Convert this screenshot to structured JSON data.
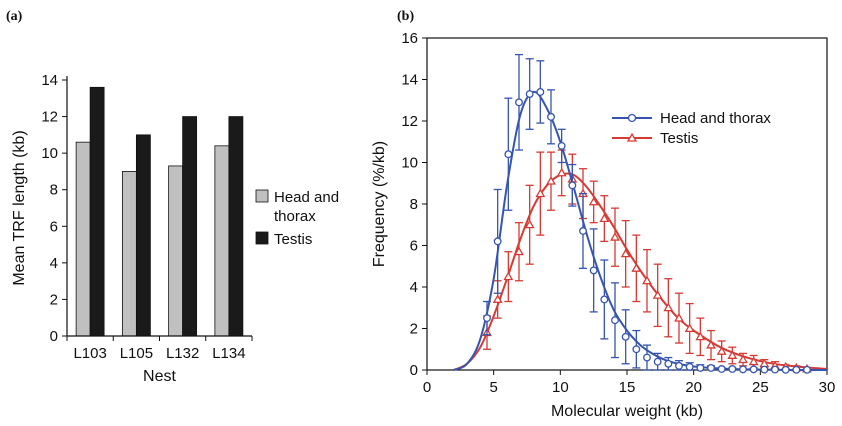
{
  "panel_labels": {
    "a": "(a)",
    "b": "(b)"
  },
  "colors": {
    "bar_head": "#c0c0c0",
    "bar_testis": "#1a1a1a",
    "head_line": "#3555b0",
    "testis_line": "#d63a34",
    "axis": "#111111"
  },
  "chart_data": [
    {
      "type": "bar",
      "panel": "(a)",
      "categories": [
        "L103",
        "L105",
        "L132",
        "L134"
      ],
      "series": [
        {
          "name": "Head and thorax",
          "values": [
            10.6,
            9.0,
            9.3,
            10.4
          ]
        },
        {
          "name": "Testis",
          "values": [
            13.6,
            11.0,
            12.0,
            12.0
          ]
        }
      ],
      "legend_labels": [
        "Head and",
        "thorax",
        "Testis"
      ],
      "xlabel": "Nest",
      "ylabel": "Mean TRF length (kb)",
      "ylim": [
        0,
        14
      ],
      "yticks": [
        "0",
        "2",
        "4",
        "6",
        "8",
        "10",
        "12",
        "14"
      ],
      "grid": false,
      "legend_position": "right"
    },
    {
      "type": "line",
      "panel": "(b)",
      "xlabel": "Molecular weight (kb)",
      "ylabel": "Frequency (%/kb)",
      "xlim": [
        0,
        30
      ],
      "ylim": [
        0,
        16
      ],
      "xticks": [
        "0",
        "5",
        "10",
        "15",
        "20",
        "25",
        "30"
      ],
      "yticks": [
        "0",
        "2",
        "4",
        "6",
        "8",
        "10",
        "12",
        "14",
        "16"
      ],
      "grid": false,
      "legend_position": "top-right",
      "series": [
        {
          "name": "Head and thorax",
          "marker": "circle",
          "x": [
            4.5,
            5.3,
            6.1,
            6.9,
            7.7,
            8.5,
            9.3,
            10.1,
            10.9,
            11.7,
            12.5,
            13.3,
            14.1,
            14.9,
            15.7,
            16.5,
            17.3,
            18.1,
            18.9,
            19.7,
            20.5,
            21.3,
            22.1,
            22.9,
            23.7,
            24.5,
            25.3,
            26.1,
            26.9,
            27.7,
            28.5
          ],
          "y": [
            2.5,
            6.2,
            10.4,
            12.9,
            13.3,
            13.4,
            12.2,
            10.8,
            8.9,
            6.7,
            4.8,
            3.4,
            2.4,
            1.6,
            1.0,
            0.6,
            0.4,
            0.3,
            0.2,
            0.15,
            0.1,
            0.1,
            0.05,
            0.05,
            0.03,
            0.03,
            0.02,
            0.02,
            0.01,
            0.01,
            0.01
          ],
          "err": [
            0.8,
            2.5,
            2.7,
            2.3,
            1.7,
            1.5,
            1.3,
            0.8,
            1.0,
            1.8,
            2.0,
            1.9,
            1.8,
            1.3,
            0.9,
            0.6,
            0.4,
            0.3,
            0.25,
            0.2,
            0.15,
            0.1,
            0.05,
            0.05,
            0,
            0,
            0,
            0,
            0,
            0,
            0
          ],
          "fit_x": [
            2,
            3,
            4,
            5,
            6,
            7,
            8,
            9,
            10,
            11,
            12,
            13,
            14,
            15,
            16,
            17,
            18,
            19,
            20,
            22,
            24,
            26,
            28,
            30
          ],
          "fit_y": [
            0,
            0.3,
            1.5,
            4.4,
            8.9,
            12.3,
            13.4,
            12.6,
            11.0,
            8.8,
            6.5,
            4.5,
            2.9,
            1.9,
            1.2,
            0.75,
            0.45,
            0.28,
            0.17,
            0.07,
            0.03,
            0.01,
            0,
            0
          ]
        },
        {
          "name": "Testis",
          "marker": "triangle",
          "x": [
            4.5,
            5.3,
            6.1,
            6.9,
            7.7,
            8.5,
            9.3,
            10.1,
            10.9,
            11.7,
            12.5,
            13.3,
            14.1,
            14.9,
            15.7,
            16.5,
            17.3,
            18.1,
            18.9,
            19.7,
            20.5,
            21.3,
            22.1,
            22.9,
            23.7,
            24.5,
            25.3,
            26.1,
            26.9,
            27.7,
            28.5
          ],
          "y": [
            1.8,
            3.4,
            4.5,
            5.7,
            7.0,
            8.5,
            9.1,
            9.5,
            9.2,
            8.5,
            8.1,
            7.3,
            6.4,
            5.6,
            4.9,
            4.3,
            3.6,
            3.0,
            2.5,
            2.0,
            1.6,
            1.2,
            0.9,
            0.7,
            0.5,
            0.4,
            0.3,
            0.2,
            0.15,
            0.1,
            0.05
          ],
          "err": [
            0.8,
            0.9,
            1.2,
            1.4,
            1.9,
            2.0,
            1.4,
            1.1,
            1.2,
            1.2,
            1.0,
            1.1,
            1.4,
            1.6,
            1.6,
            1.5,
            1.5,
            1.4,
            1.2,
            1.2,
            0.9,
            0.7,
            0.5,
            0.4,
            0.3,
            0.3,
            0.2,
            0.2,
            0.1,
            0.1,
            0.05
          ],
          "fit_x": [
            2,
            3,
            4,
            5,
            6,
            7,
            8,
            9,
            10,
            11,
            12,
            13,
            14,
            15,
            16,
            17,
            18,
            19,
            20,
            22,
            24,
            26,
            28,
            30
          ],
          "fit_y": [
            0,
            0.3,
            1.1,
            2.6,
            4.4,
            6.3,
            7.9,
            8.9,
            9.4,
            9.4,
            8.8,
            7.9,
            6.9,
            5.8,
            4.8,
            3.9,
            3.1,
            2.4,
            1.9,
            1.1,
            0.6,
            0.3,
            0.15,
            0.05
          ]
        }
      ]
    }
  ]
}
